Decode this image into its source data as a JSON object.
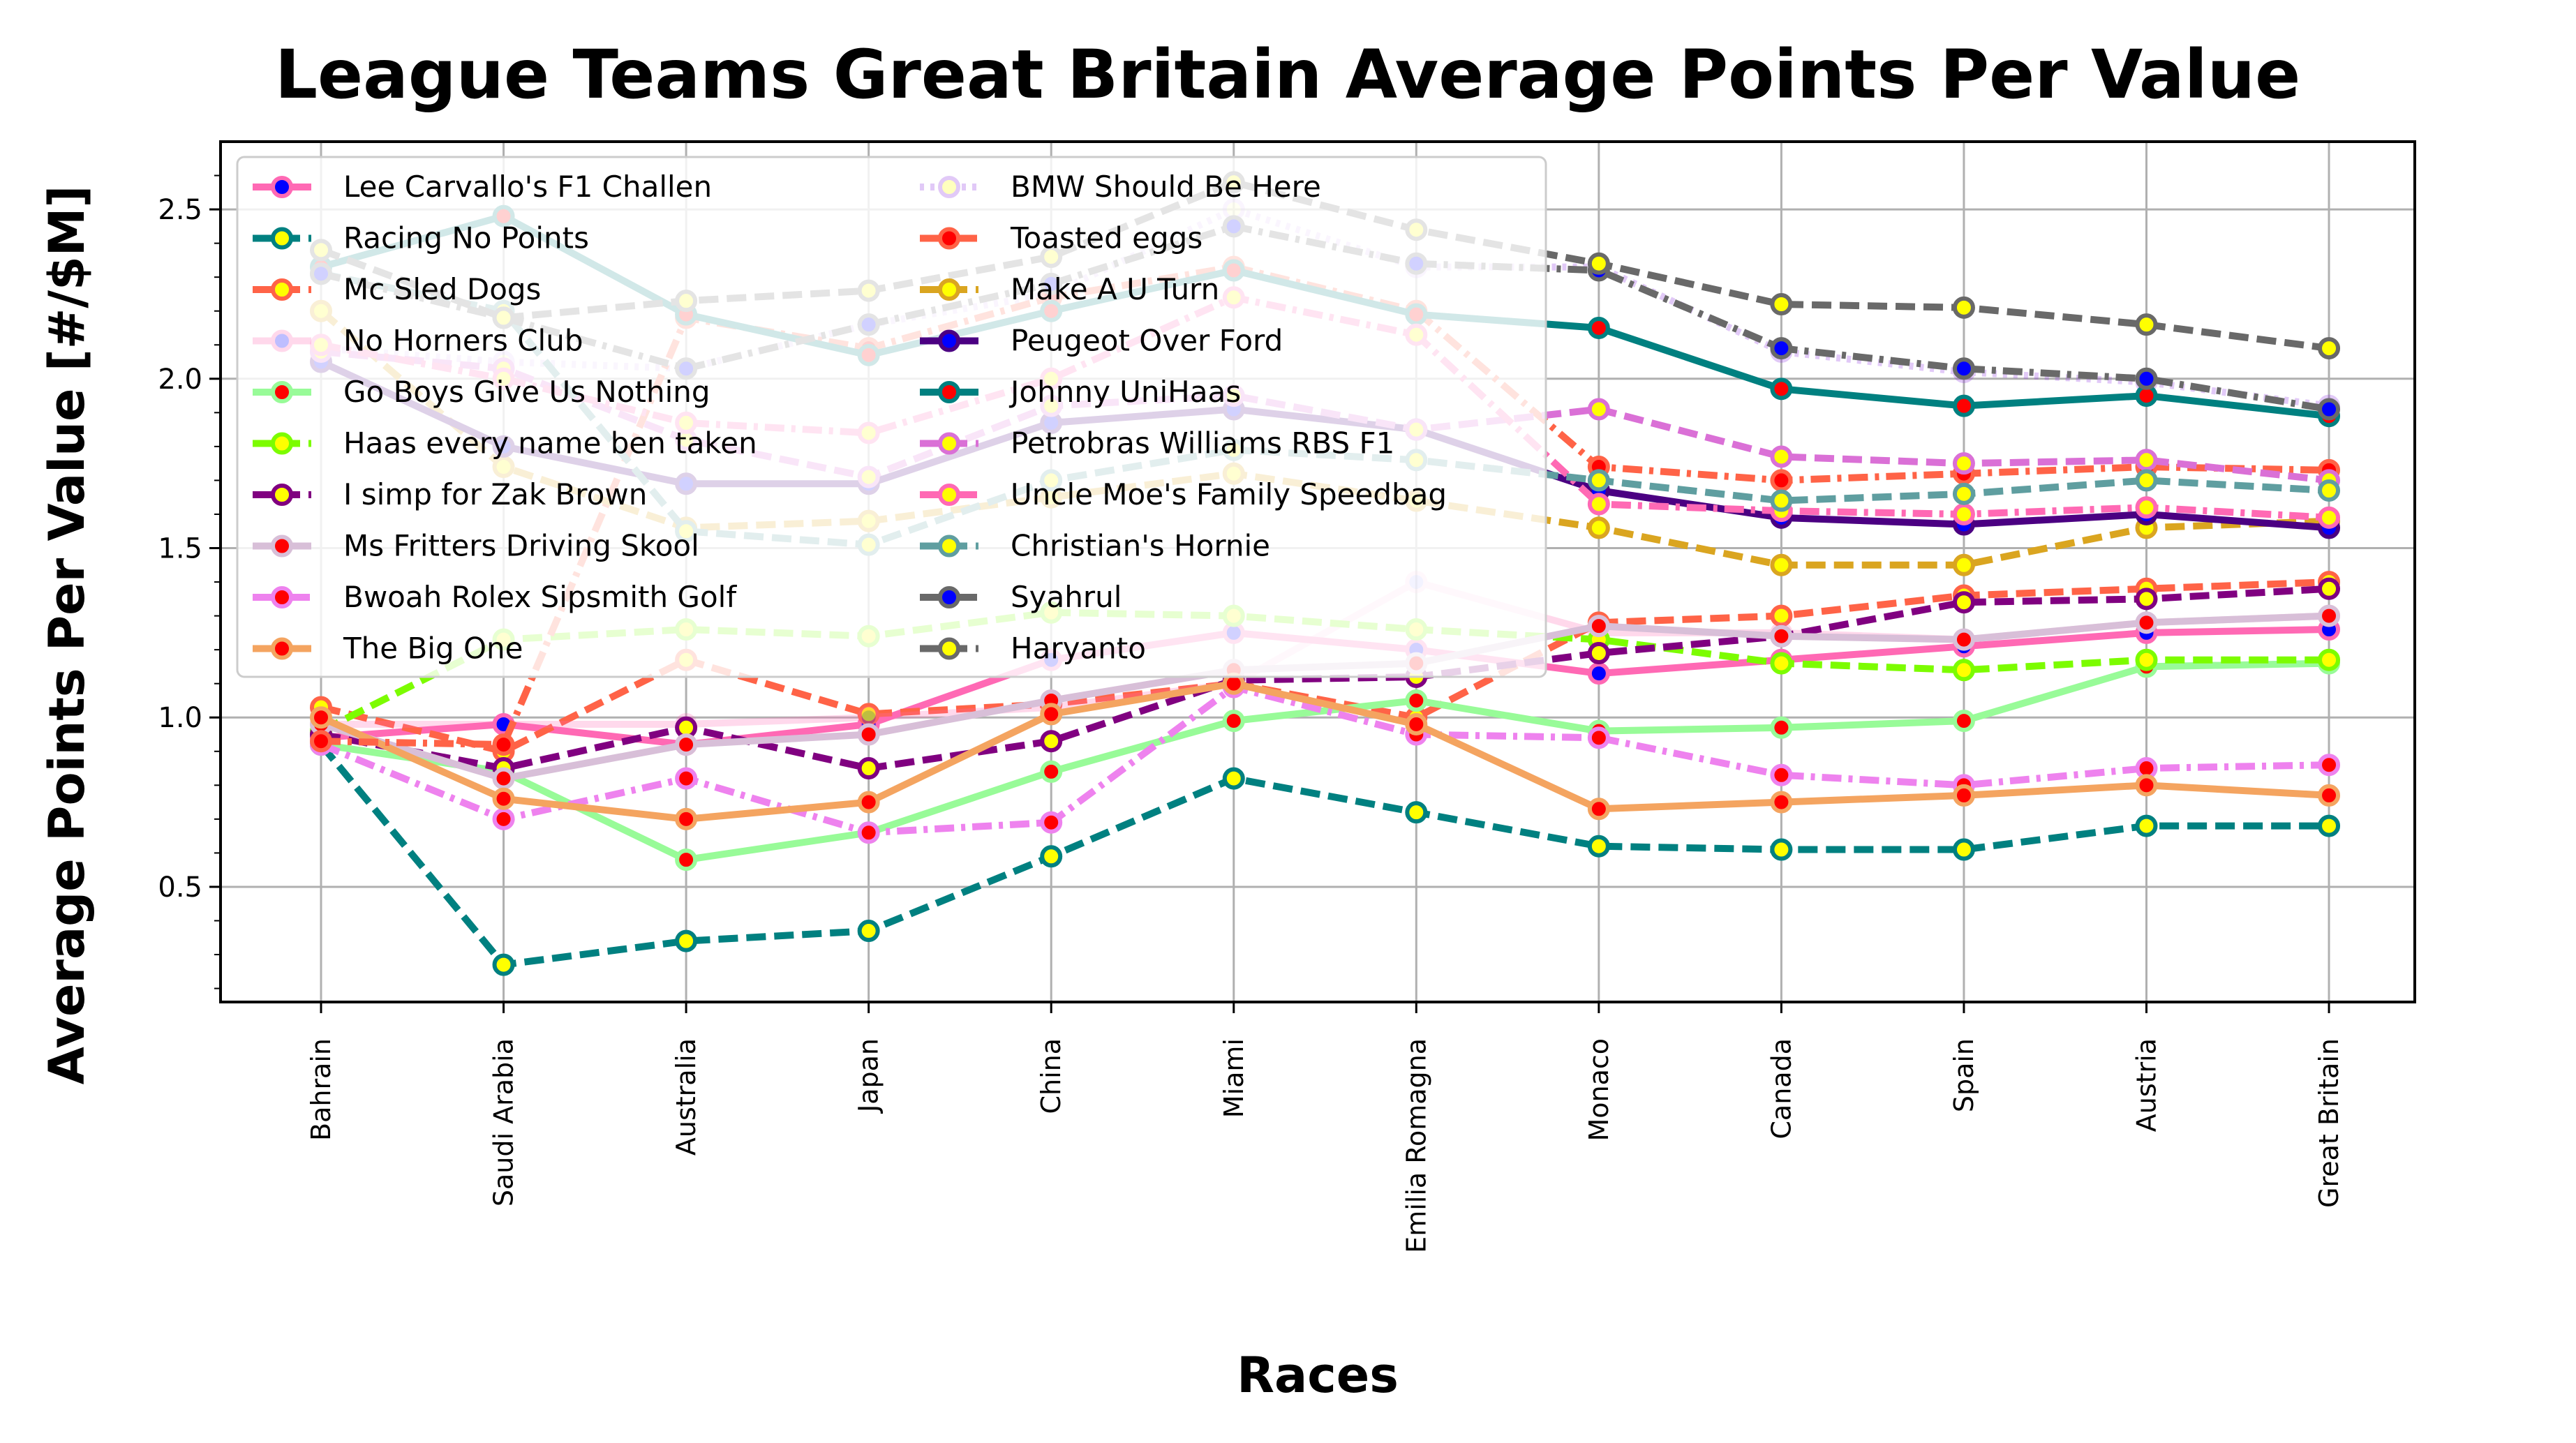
{
  "chart_data": {
    "type": "line",
    "title": "League Teams Great Britain Average Points Per Value",
    "xlabel": "Races",
    "ylabel": "Average Points Per Value [#/$M]",
    "categories": [
      "Bahrain",
      "Saudi Arabia",
      "Australia",
      "Japan",
      "China",
      "Miami",
      "Emilia Romagna",
      "Monaco",
      "Canada",
      "Spain",
      "Austria",
      "Great Britain"
    ],
    "ylim": [
      0.16,
      2.7
    ],
    "yticks": [
      "0.5",
      "1.0",
      "1.5",
      "2.0",
      "2.5"
    ],
    "ytick_values": [
      0.5,
      1.0,
      1.5,
      2.0,
      2.5
    ],
    "grid": true,
    "legend_position": "top-left",
    "series": [
      {
        "name": "Lee Carvallo's F1 Challen",
        "color": "#ff69b4",
        "marker_face": "#0000ff",
        "dash": "solid",
        "alpha": 1,
        "values": [
          0.94,
          0.98,
          0.92,
          0.98,
          1.17,
          1.25,
          1.2,
          1.13,
          1.17,
          1.21,
          1.25,
          1.26
        ]
      },
      {
        "name": "Racing No Points",
        "color": "#008080",
        "marker_face": "#ffff00",
        "dash": "dashed",
        "alpha": 1,
        "values": [
          0.92,
          0.27,
          0.34,
          0.37,
          0.59,
          0.82,
          0.72,
          0.62,
          0.61,
          0.61,
          0.68,
          0.68
        ]
      },
      {
        "name": "Mc Sled Dogs",
        "color": "#ff6347",
        "marker_face": "#ffff00",
        "dash": "dashed",
        "alpha": 1,
        "values": [
          1.03,
          0.9,
          1.17,
          1.01,
          1.04,
          1.1,
          1.0,
          1.28,
          1.3,
          1.36,
          1.38,
          1.4
        ]
      },
      {
        "name": "No Horners Club",
        "color": "#ff69b4",
        "marker_face": "#0000ff",
        "dash": "solid",
        "alpha": 0.25,
        "values": [
          0.98,
          0.98,
          0.98,
          1.0,
          1.03,
          1.1,
          1.4,
          1.25,
          1.25,
          1.23,
          1.28,
          1.3
        ]
      },
      {
        "name": "Go Boys Give Us Nothing",
        "color": "#98fb98",
        "marker_face": "#ff0000",
        "dash": "solid",
        "alpha": 1,
        "values": [
          0.92,
          0.84,
          0.58,
          0.66,
          0.84,
          0.99,
          1.05,
          0.96,
          0.97,
          0.99,
          1.15,
          1.16
        ]
      },
      {
        "name": "Haas every name ben taken",
        "color": "#7cfc00",
        "marker_face": "#ffff00",
        "dash": "dashed",
        "alpha": 1,
        "values": [
          0.96,
          1.23,
          1.26,
          1.24,
          1.31,
          1.3,
          1.26,
          1.23,
          1.16,
          1.14,
          1.17,
          1.17
        ]
      },
      {
        "name": "I simp for Zak Brown",
        "color": "#800080",
        "marker_face": "#ffff00",
        "dash": "dashed",
        "alpha": 1,
        "values": [
          0.95,
          0.85,
          0.97,
          0.85,
          0.93,
          1.11,
          1.12,
          1.19,
          1.24,
          1.34,
          1.35,
          1.38
        ]
      },
      {
        "name": "Ms Fritters Driving Skool",
        "color": "#d8bfd8",
        "marker_face": "#ff0000",
        "dash": "solid",
        "alpha": 1,
        "values": [
          0.98,
          0.82,
          0.92,
          0.95,
          1.05,
          1.14,
          1.16,
          1.27,
          1.24,
          1.23,
          1.28,
          1.3
        ]
      },
      {
        "name": "Bwoah Rolex Sipsmith Golf",
        "color": "#ee82ee",
        "marker_face": "#ff0000",
        "dash": "dashdot",
        "alpha": 1,
        "values": [
          0.92,
          0.7,
          0.82,
          0.66,
          0.69,
          1.09,
          0.95,
          0.94,
          0.83,
          0.8,
          0.85,
          0.86
        ]
      },
      {
        "name": "The Big One",
        "color": "#f4a460",
        "marker_face": "#ff0000",
        "dash": "solid",
        "alpha": 1,
        "values": [
          1.0,
          0.76,
          0.7,
          0.75,
          1.01,
          1.1,
          0.98,
          0.73,
          0.75,
          0.77,
          0.8,
          0.77
        ]
      },
      {
        "name": "BMW Should Be Here",
        "color": "#8a2be2",
        "marker_face": "#ffff00",
        "dash": "dotted",
        "alpha": 0.25,
        "values": [
          2.09,
          2.05,
          2.03,
          2.16,
          2.25,
          2.5,
          2.33,
          2.33,
          2.08,
          2.02,
          1.99,
          1.92
        ]
      },
      {
        "name": "Toasted eggs",
        "color": "#ff6347",
        "marker_face": "#ff0000",
        "dash": "dashdot",
        "alpha": 1,
        "values": [
          0.93,
          0.92,
          2.18,
          2.09,
          2.24,
          2.33,
          2.2,
          1.74,
          1.7,
          1.72,
          1.74,
          1.73
        ]
      },
      {
        "name": "Make A U Turn",
        "color": "#daa520",
        "marker_face": "#ffff00",
        "dash": "dashed",
        "alpha": 1,
        "values": [
          2.2,
          1.74,
          1.56,
          1.58,
          1.65,
          1.72,
          1.64,
          1.56,
          1.45,
          1.45,
          1.56,
          1.58
        ]
      },
      {
        "name": "Peugeot Over Ford",
        "color": "#4b0082",
        "marker_face": "#0000ff",
        "dash": "solid",
        "alpha": 1,
        "values": [
          2.05,
          1.8,
          1.69,
          1.69,
          1.87,
          1.91,
          1.85,
          1.67,
          1.59,
          1.57,
          1.6,
          1.56
        ]
      },
      {
        "name": "Johnny UniHaas",
        "color": "#008080",
        "marker_face": "#ff0000",
        "dash": "solid",
        "alpha": 1,
        "values": [
          2.33,
          2.48,
          2.19,
          2.07,
          2.2,
          2.32,
          2.19,
          2.15,
          1.97,
          1.92,
          1.95,
          1.89
        ]
      },
      {
        "name": "Petrobras Williams RBS F1",
        "color": "#da70d6",
        "marker_face": "#ffff00",
        "dash": "dashed",
        "alpha": 1,
        "values": [
          2.08,
          2.03,
          1.82,
          1.71,
          1.92,
          1.95,
          1.85,
          1.91,
          1.77,
          1.75,
          1.76,
          1.7
        ]
      },
      {
        "name": "Uncle Moe's Family Speedbag",
        "color": "#ff69b4",
        "marker_face": "#ffff00",
        "dash": "dashdot",
        "alpha": 1,
        "values": [
          2.1,
          2.0,
          1.87,
          1.84,
          2.0,
          2.24,
          2.13,
          1.63,
          1.61,
          1.6,
          1.62,
          1.59
        ]
      },
      {
        "name": "Christian's Hornie",
        "color": "#5f9ea0",
        "marker_face": "#ffff00",
        "dash": "dashed",
        "alpha": 1,
        "values": [
          2.31,
          2.2,
          1.55,
          1.51,
          1.7,
          1.79,
          1.76,
          1.7,
          1.64,
          1.66,
          1.7,
          1.67
        ]
      },
      {
        "name": "Syahrul",
        "color": "#696969",
        "marker_face": "#0000ff",
        "dash": "dashdot",
        "alpha": 1,
        "values": [
          2.31,
          2.18,
          2.03,
          2.16,
          2.28,
          2.45,
          2.34,
          2.32,
          2.09,
          2.03,
          2.0,
          1.91
        ]
      },
      {
        "name": "Haryanto",
        "color": "#696969",
        "marker_face": "#ffff00",
        "dash": "dashed",
        "alpha": 1,
        "values": [
          2.38,
          2.18,
          2.23,
          2.26,
          2.36,
          2.58,
          2.44,
          2.34,
          2.22,
          2.21,
          2.16,
          2.09
        ]
      }
    ]
  }
}
